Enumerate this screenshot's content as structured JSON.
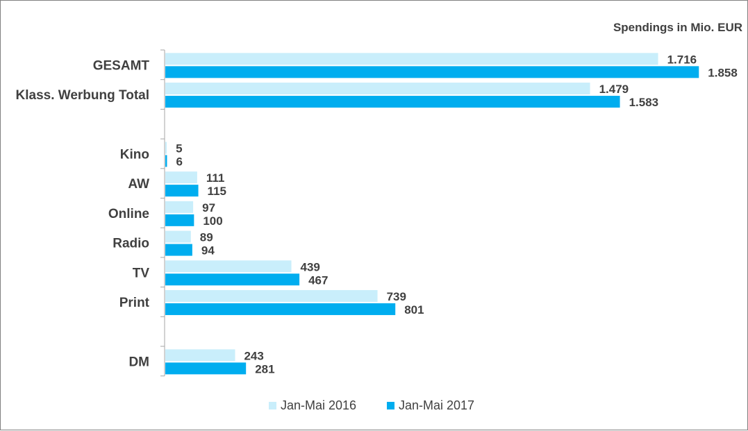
{
  "chart_data": {
    "type": "bar",
    "orientation": "horizontal",
    "unit_label": "Spendings in Mio. EUR",
    "categories": [
      "GESAMT",
      "Klass. Werbung Total",
      "",
      "Kino",
      "AW",
      "Online",
      "Radio",
      "TV",
      "Print",
      "",
      "DM"
    ],
    "series": [
      {
        "name": "Jan-Mai 2016",
        "color": "#C9EEFB",
        "values": [
          1716,
          1479,
          null,
          5,
          111,
          97,
          89,
          439,
          739,
          null,
          243
        ],
        "labels": [
          "1.716",
          "1.479",
          "",
          "5",
          "111",
          "97",
          "89",
          "439",
          "739",
          "",
          "243"
        ]
      },
      {
        "name": "Jan-Mai 2017",
        "color": "#00ADEF",
        "values": [
          1858,
          1583,
          null,
          6,
          115,
          100,
          94,
          467,
          801,
          null,
          281
        ],
        "labels": [
          "1.858",
          "1.583",
          "",
          "6",
          "115",
          "100",
          "94",
          "467",
          "801",
          "",
          "281"
        ]
      }
    ],
    "xlim": [
      0,
      2000
    ],
    "grid": false,
    "legend_position": "bottom"
  }
}
